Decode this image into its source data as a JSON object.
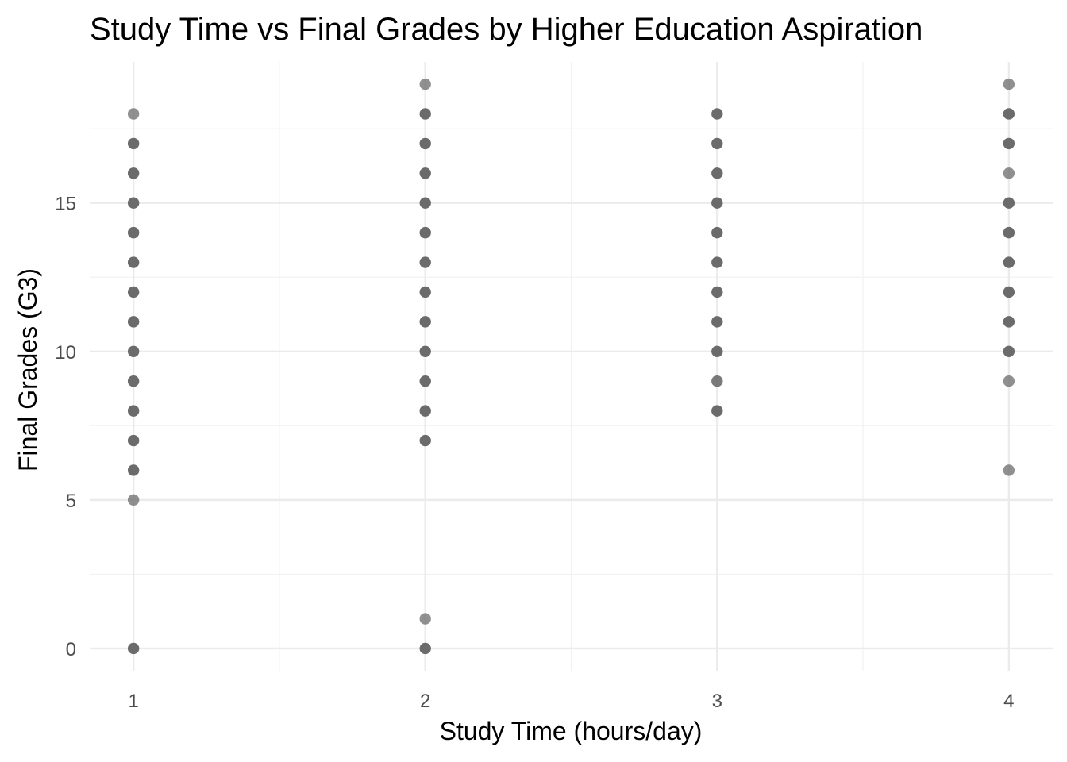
{
  "chart_data": {
    "type": "scatter",
    "title": "Study Time vs Final Grades by Higher Education Aspiration",
    "xlabel": "Study Time (hours/day)",
    "ylabel": "Final Grades (G3)",
    "x_ticks": [
      1,
      2,
      3,
      4
    ],
    "y_ticks": [
      0,
      5,
      10,
      15
    ],
    "xlim": [
      0.85,
      4.15
    ],
    "ylim": [
      -0.75,
      19.75
    ],
    "grid": true,
    "point_color": "#6b6b6b",
    "gridline_major_color": "#ebebeb",
    "gridline_minor_color": "#f2f2f2",
    "series": [
      {
        "x": [
          1,
          1,
          1,
          1,
          1,
          1,
          1,
          1,
          1,
          1,
          1,
          1,
          1,
          1,
          1,
          2,
          2,
          2,
          2,
          2,
          2,
          2,
          2,
          2,
          2,
          2,
          2,
          2,
          2,
          2,
          3,
          3,
          3,
          3,
          3,
          3,
          3,
          3,
          3,
          3,
          3,
          4,
          4,
          4,
          4,
          4,
          4,
          4,
          4,
          4,
          4,
          4,
          4
        ],
        "y": [
          18,
          17,
          16,
          15,
          14,
          13,
          12,
          11,
          10,
          9,
          8,
          7,
          6,
          5,
          0,
          19,
          18,
          17,
          16,
          15,
          14,
          13,
          12,
          11,
          10,
          9,
          8,
          7,
          1,
          0,
          18,
          17,
          16,
          15,
          14,
          13,
          12,
          11,
          10,
          9,
          8,
          19,
          18,
          17,
          16,
          15,
          14,
          13,
          12,
          11,
          10,
          9,
          6
        ],
        "opacity": [
          0.75,
          1,
          1,
          1,
          1,
          1,
          1,
          1,
          1,
          1,
          1,
          1,
          1,
          0.75,
          1,
          0.75,
          1,
          1,
          1,
          1,
          1,
          1,
          1,
          1,
          1,
          1,
          1,
          1,
          0.75,
          1,
          1,
          1,
          1,
          1,
          1,
          1,
          1,
          1,
          1,
          0.9,
          1,
          0.75,
          1,
          1,
          0.75,
          1,
          1,
          1,
          1,
          1,
          1,
          0.75,
          0.75
        ]
      }
    ]
  }
}
